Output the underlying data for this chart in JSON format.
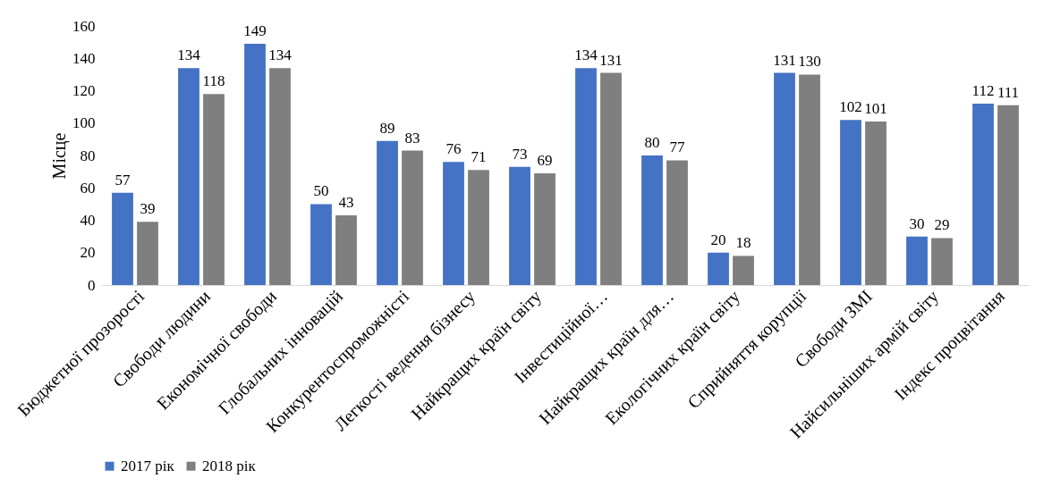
{
  "chart_data": {
    "type": "bar",
    "ylabel": "Місце",
    "categories": [
      "Бюджетної прозорості",
      "Свободи людини",
      "Економічної свободи",
      "Глобальних інновацій",
      "Конкурентоспроможністі",
      "Легкості ведення бізнесу",
      "Найкращих країн світу",
      "Інвестиційної…",
      "Найкращих країн для…",
      "Екологічних країн світу",
      "Сприйняття корупції",
      "Свободи ЗМІ",
      "Найсильніших армій світу",
      "Індекс процвітання"
    ],
    "series": [
      {
        "name": "2017 рік",
        "color": "#4472c4",
        "values": [
          57,
          134,
          149,
          50,
          89,
          76,
          73,
          134,
          80,
          20,
          131,
          102,
          30,
          112
        ]
      },
      {
        "name": "2018 рік",
        "color": "#7f7f7f",
        "values": [
          39,
          118,
          134,
          43,
          83,
          71,
          69,
          131,
          77,
          18,
          130,
          101,
          29,
          111
        ]
      }
    ],
    "ylim": [
      0,
      160
    ],
    "yticks": [
      0,
      20,
      40,
      60,
      80,
      100,
      120,
      140,
      160
    ],
    "grid": false,
    "legend": "bottom",
    "data_labels": true
  }
}
